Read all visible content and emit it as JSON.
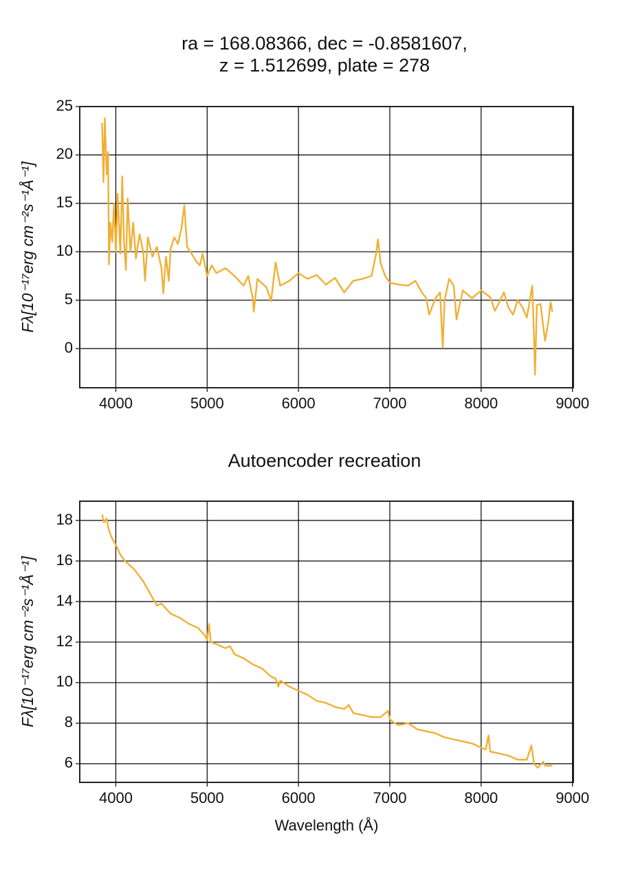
{
  "chart_data": [
    {
      "type": "line",
      "title": [
        "ra = 168.08366, dec = -0.8581607,",
        "z = 1.512699, plate = 278"
      ],
      "y_label": "Fλ[10⁻¹⁷erg cm⁻²s⁻¹Å⁻¹]",
      "x": [
        3850,
        3865,
        3880,
        3900,
        3915,
        3925,
        3940,
        3960,
        3980,
        4000,
        4020,
        4050,
        4070,
        4090,
        4110,
        4130,
        4160,
        4190,
        4220,
        4260,
        4300,
        4320,
        4350,
        4400,
        4450,
        4500,
        4520,
        4550,
        4580,
        4600,
        4640,
        4680,
        4720,
        4750,
        4780,
        4830,
        4880,
        4920,
        4950,
        5000,
        5050,
        5100,
        5200,
        5300,
        5400,
        5450,
        5500,
        5510,
        5550,
        5650,
        5700,
        5750,
        5800,
        5900,
        6000,
        6100,
        6200,
        6300,
        6400,
        6500,
        6600,
        6700,
        6800,
        6850,
        6870,
        6900,
        6950,
        7000,
        7100,
        7200,
        7280,
        7350,
        7400,
        7430,
        7500,
        7550,
        7580,
        7600,
        7650,
        7700,
        7730,
        7780,
        7800,
        7900,
        8000,
        8100,
        8150,
        8200,
        8250,
        8300,
        8350,
        8400,
        8450,
        8500,
        8530,
        8560,
        8580,
        8590,
        8610,
        8650,
        8700,
        8740,
        8760,
        8780
      ],
      "series": [
        {
          "color": "#f0b035",
          "values": [
            23.3,
            17.2,
            23.8,
            18,
            20.3,
            8.7,
            13,
            11,
            15,
            10,
            16,
            9.8,
            17.8,
            11,
            8.1,
            15.5,
            10,
            13,
            9.3,
            11.8,
            10,
            7,
            11.5,
            9.5,
            10.5,
            8.3,
            5.7,
            9.5,
            7,
            10.3,
            11.5,
            10.8,
            12.5,
            14.8,
            10.5,
            9.8,
            9,
            8.6,
            9.8,
            7.5,
            8.6,
            7.8,
            8.3,
            7.5,
            6.5,
            7.5,
            5.2,
            3.8,
            7.2,
            6.3,
            4.9,
            8.9,
            6.5,
            7,
            7.8,
            7.2,
            7.6,
            6.6,
            7.3,
            5.8,
            7,
            7.2,
            7.5,
            9.8,
            11.3,
            8.8,
            7.5,
            6.8,
            6.6,
            6.5,
            7,
            5.8,
            5.2,
            3.5,
            5.2,
            5.8,
            0.1,
            5,
            7.2,
            6.5,
            3,
            5.2,
            6,
            5.2,
            6,
            5.3,
            3.9,
            4.8,
            5.8,
            4.2,
            3.5,
            5,
            4.3,
            3.2,
            4.8,
            6.5,
            1,
            -2.7,
            4.5,
            4.6,
            0.8,
            3,
            4.8,
            3.8
          ]
        }
      ],
      "xlim": [
        3605,
        9010
      ],
      "xticks": [
        4000,
        5000,
        6000,
        7000,
        8000,
        9000
      ],
      "ylim": [
        -4.05,
        25
      ],
      "yticks": [
        0,
        5,
        10,
        15,
        20,
        25
      ],
      "grid": true
    },
    {
      "type": "line",
      "title": [
        "Autoencoder recreation"
      ],
      "y_label": "Fλ[10⁻¹⁷erg cm⁻²s⁻¹Å⁻¹]",
      "x_label": "Wavelength (Å)",
      "x": [
        3850,
        3870,
        3900,
        3920,
        3950,
        4000,
        4050,
        4100,
        4200,
        4300,
        4400,
        4450,
        4500,
        4600,
        4700,
        4800,
        4900,
        4980,
        5000,
        5020,
        5040,
        5100,
        5200,
        5250,
        5300,
        5400,
        5500,
        5600,
        5700,
        5750,
        5780,
        5800,
        5900,
        6000,
        6100,
        6200,
        6300,
        6400,
        6500,
        6550,
        6600,
        6700,
        6800,
        6900,
        6980,
        7000,
        7050,
        7100,
        7200,
        7300,
        7400,
        7500,
        7600,
        7700,
        7800,
        7900,
        8000,
        8050,
        8080,
        8100,
        8200,
        8300,
        8400,
        8500,
        8550,
        8580,
        8620,
        8680,
        8700,
        8780
      ],
      "series": [
        {
          "color": "#f0b035",
          "values": [
            18.3,
            17.9,
            18.1,
            17.6,
            17.2,
            16.8,
            16.3,
            16.0,
            15.6,
            15.0,
            14.2,
            13.8,
            13.9,
            13.4,
            13.2,
            12.9,
            12.7,
            12.3,
            12.1,
            12.9,
            12.0,
            11.9,
            11.7,
            11.8,
            11.4,
            11.2,
            10.9,
            10.7,
            10.3,
            10.2,
            9.8,
            10.1,
            9.8,
            9.6,
            9.4,
            9.1,
            9.0,
            8.8,
            8.7,
            8.9,
            8.5,
            8.4,
            8.3,
            8.3,
            8.6,
            8.2,
            8.0,
            7.9,
            8.0,
            7.7,
            7.6,
            7.5,
            7.3,
            7.2,
            7.1,
            7.0,
            6.8,
            6.7,
            7.4,
            6.6,
            6.5,
            6.4,
            6.2,
            6.2,
            6.9,
            6.0,
            5.8,
            6.1,
            5.9,
            5.9
          ]
        }
      ],
      "xlim": [
        3605,
        9010
      ],
      "xticks": [
        4000,
        5000,
        6000,
        7000,
        8000,
        9000
      ],
      "ylim": [
        5.08,
        18.95
      ],
      "yticks": [
        6,
        8,
        10,
        12,
        14,
        16,
        18
      ],
      "grid": true
    }
  ]
}
